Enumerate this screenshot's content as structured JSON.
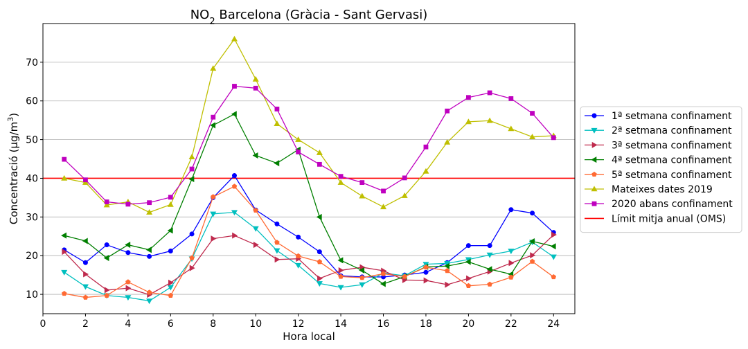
{
  "chart_data": {
    "type": "line",
    "title": {
      "prefix": "NO",
      "sub": "2",
      "rest": " Barcelona (Gràcia - Sant Gervasi)"
    },
    "xlabel": "Hora local",
    "ylabel": {
      "prefix": "Concentració (μg/m",
      "sup": "3",
      "suffix": ")"
    },
    "xlim": [
      0,
      25
    ],
    "ylim": [
      5,
      80
    ],
    "xticks": [
      0,
      2,
      4,
      6,
      8,
      10,
      12,
      14,
      16,
      18,
      20,
      22,
      24
    ],
    "yticks": [
      10,
      20,
      30,
      40,
      50,
      60,
      70
    ],
    "grid": "horizontal",
    "legend_position": "right",
    "x": [
      1,
      2,
      3,
      4,
      5,
      6,
      7,
      8,
      9,
      10,
      11,
      12,
      13,
      14,
      15,
      16,
      17,
      18,
      19,
      20,
      21,
      22,
      23,
      24
    ],
    "series": [
      {
        "name": "1ª setmana confinament",
        "color": "#0000ff",
        "marker": "circle",
        "values": [
          21.5,
          18.2,
          22.8,
          20.8,
          19.8,
          21.2,
          25.6,
          35.0,
          40.7,
          31.8,
          28.2,
          24.8,
          21.0,
          14.8,
          14.5,
          14.5,
          15.0,
          15.7,
          18.2,
          22.6,
          22.6,
          31.9,
          31.0,
          26.0
        ]
      },
      {
        "name": "2ª setmana confinament",
        "color": "#00bfbf",
        "marker": "triangle-down",
        "values": [
          15.7,
          12.0,
          9.7,
          9.2,
          8.3,
          11.8,
          19.2,
          30.8,
          31.2,
          27.0,
          21.3,
          17.5,
          12.8,
          11.8,
          12.5,
          15.5,
          14.8,
          17.8,
          18.0,
          19.0,
          20.2,
          21.2,
          23.5,
          19.7
        ]
      },
      {
        "name": "3ª setmana confinament",
        "color": "#bf2a4d",
        "marker": "triangle-right",
        "values": [
          21.0,
          15.2,
          11.1,
          11.6,
          9.9,
          13.0,
          16.8,
          24.4,
          25.2,
          22.8,
          19.0,
          19.2,
          14.1,
          16.2,
          17.0,
          16.1,
          13.7,
          13.6,
          12.5,
          14.1,
          15.9,
          18.1,
          20.1,
          25.4
        ]
      },
      {
        "name": "4ª setmana confinament",
        "color": "#007f00",
        "marker": "triangle-left",
        "values": [
          25.2,
          23.8,
          19.4,
          22.8,
          21.5,
          26.5,
          39.8,
          53.7,
          56.6,
          45.9,
          43.9,
          47.4,
          30.0,
          18.8,
          16.2,
          12.7,
          14.6,
          17.1,
          17.3,
          18.4,
          16.5,
          15.2,
          23.7,
          22.4
        ]
      },
      {
        "name": "5ª setmana confinament",
        "color": "#ff6a33",
        "marker": "pentagon",
        "values": [
          10.2,
          9.2,
          9.7,
          13.2,
          10.5,
          9.7,
          19.4,
          35.2,
          37.9,
          31.7,
          23.4,
          19.9,
          18.4,
          14.6,
          14.3,
          15.3,
          14.6,
          17.0,
          16.1,
          12.2,
          12.6,
          14.4,
          18.5,
          14.5
        ]
      },
      {
        "name": "Mateixes dates 2019",
        "color": "#bfbf00",
        "marker": "triangle-up",
        "values": [
          40.0,
          38.9,
          33.1,
          33.9,
          31.2,
          33.2,
          45.5,
          68.4,
          76.0,
          65.6,
          54.1,
          50.0,
          46.6,
          38.9,
          35.4,
          32.6,
          35.5,
          41.8,
          49.3,
          54.6,
          54.9,
          52.8,
          50.7,
          51.0
        ]
      },
      {
        "name": "2020 abans confinament",
        "color": "#bf00bf",
        "marker": "square",
        "values": [
          44.9,
          39.6,
          33.9,
          33.3,
          33.7,
          35.1,
          42.4,
          55.8,
          63.8,
          63.3,
          57.9,
          46.8,
          43.6,
          40.5,
          38.9,
          36.7,
          40.1,
          48.1,
          57.4,
          60.9,
          62.1,
          60.6,
          56.8,
          50.5
        ]
      }
    ],
    "reference_line": {
      "name": "Límit mitja anual (OMS)",
      "color": "#ff0000",
      "y": 40
    }
  }
}
